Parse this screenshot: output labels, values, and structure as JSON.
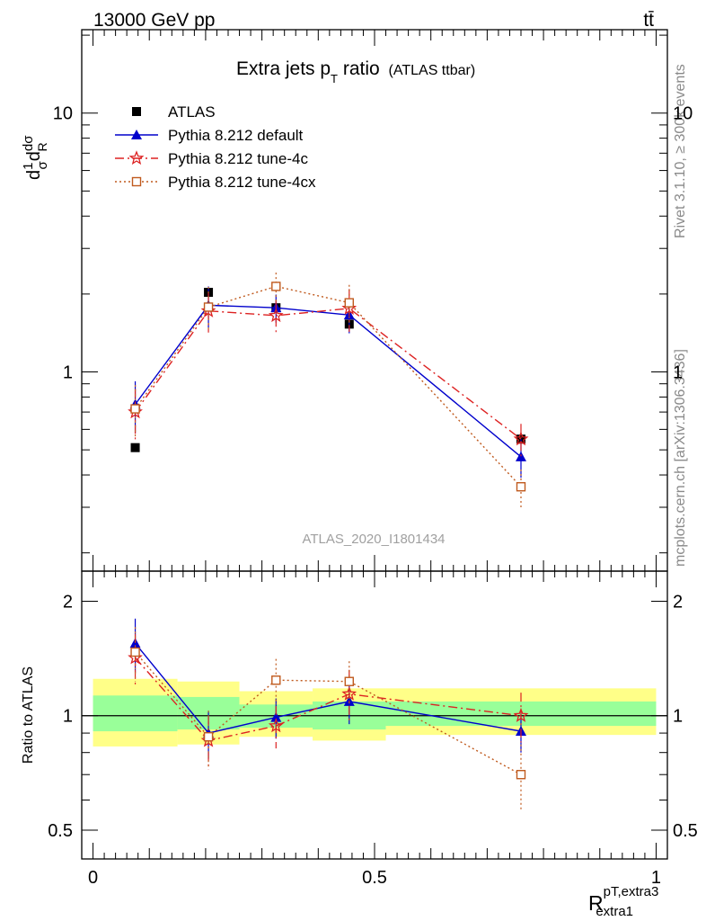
{
  "header": {
    "left": "13000 GeV pp",
    "right": "tt̄"
  },
  "side_labels": {
    "rivet": "Rivet 3.1.10, ≥ 300k events",
    "mcplots": "mcplots.cern.ch [arXiv:1306.3436]"
  },
  "colors": {
    "atlas": "#000000",
    "default": "#0000cc",
    "tune4c": "#dd2222",
    "tune4cx": "#c05a1e",
    "band_inner": "#99ff99",
    "band_outer": "#ffff88"
  },
  "chart_data": [
    {
      "type": "scatter",
      "panel": "main",
      "title_main": "Extra jets p",
      "title_sub": "T",
      "title_rest": " ratio",
      "title_note": "(ATLAS ttbar)",
      "ylabel": "1/σ dσ^fid/dR^pT,extra3_extra1",
      "watermark": "ATLAS_2020_I1801434",
      "yscale": "log",
      "ylim": [
        0.17,
        21
      ],
      "xlim": [
        -0.02,
        1.02
      ],
      "yticks": [
        {
          "value": 1,
          "label": "1"
        },
        {
          "value": 10,
          "label": "10"
        }
      ],
      "legend_position": "top-left",
      "series": [
        {
          "name": "ATLAS",
          "key": "atlas",
          "marker": "square",
          "x": [
            0.075,
            0.205,
            0.325,
            0.455,
            0.76
          ],
          "y": [
            0.51,
            2.03,
            1.77,
            1.53,
            0.55
          ]
        },
        {
          "name": "Pythia 8.212 default",
          "key": "default",
          "marker": "triangle",
          "line": "solid",
          "x": [
            0.075,
            0.205,
            0.325,
            0.455,
            0.76
          ],
          "y": [
            0.75,
            1.81,
            1.77,
            1.66,
            0.47
          ],
          "err": [
            0.17,
            0.33,
            0.22,
            0.25,
            0.08
          ]
        },
        {
          "name": "Pythia 8.212 tune-4c",
          "key": "tune4c",
          "marker": "star",
          "line": "dashdot",
          "x": [
            0.075,
            0.205,
            0.325,
            0.455,
            0.76
          ],
          "y": [
            0.7,
            1.72,
            1.65,
            1.76,
            0.55
          ],
          "err": [
            0.16,
            0.3,
            0.25,
            0.33,
            0.08
          ]
        },
        {
          "name": "Pythia 8.212 tune-4cx",
          "key": "tune4cx",
          "marker": "open-square",
          "line": "dotted",
          "x": [
            0.075,
            0.205,
            0.325,
            0.455,
            0.76
          ],
          "y": [
            0.72,
            1.78,
            2.14,
            1.85,
            0.36
          ],
          "err": [
            0.17,
            0.35,
            0.28,
            0.32,
            0.06
          ]
        }
      ]
    },
    {
      "type": "scatter",
      "panel": "ratio",
      "ylabel": "Ratio to ATLAS",
      "xlabel_main": "R",
      "xlabel_sup": "pT,extra3",
      "xlabel_sub": "extra1",
      "yscale": "log",
      "ylim": [
        0.42,
        2.4
      ],
      "xlim": [
        -0.02,
        1.02
      ],
      "yticks": [
        {
          "value": 0.5,
          "label": "0.5"
        },
        {
          "value": 1,
          "label": "1"
        },
        {
          "value": 2,
          "label": "2"
        }
      ],
      "xticks": [
        {
          "value": 0,
          "label": "0"
        },
        {
          "value": 0.5,
          "label": "0.5"
        },
        {
          "value": 1,
          "label": "1"
        }
      ],
      "bands": [
        {
          "x0": 0.0,
          "x1": 0.15,
          "inner": [
            0.91,
            1.13
          ],
          "outer": [
            0.83,
            1.25
          ]
        },
        {
          "x0": 0.15,
          "x1": 0.26,
          "inner": [
            0.92,
            1.12
          ],
          "outer": [
            0.84,
            1.23
          ]
        },
        {
          "x0": 0.26,
          "x1": 0.39,
          "inner": [
            0.93,
            1.07
          ],
          "outer": [
            0.88,
            1.16
          ]
        },
        {
          "x0": 0.39,
          "x1": 0.52,
          "inner": [
            0.92,
            1.09
          ],
          "outer": [
            0.86,
            1.18
          ]
        },
        {
          "x0": 0.52,
          "x1": 1.0,
          "inner": [
            0.94,
            1.09
          ],
          "outer": [
            0.89,
            1.18
          ]
        }
      ],
      "series": [
        {
          "name": "Pythia 8.212 default",
          "key": "default",
          "marker": "triangle",
          "line": "solid",
          "x": [
            0.075,
            0.205,
            0.325,
            0.455,
            0.76
          ],
          "y": [
            1.55,
            0.9,
            0.99,
            1.09,
            0.91
          ],
          "err": [
            0.25,
            0.13,
            0.12,
            0.14,
            0.11
          ]
        },
        {
          "name": "Pythia 8.212 tune-4c",
          "key": "tune4c",
          "marker": "star",
          "line": "dashdot",
          "x": [
            0.075,
            0.205,
            0.325,
            0.455,
            0.76
          ],
          "y": [
            1.42,
            0.86,
            0.94,
            1.14,
            1.0
          ],
          "err": [
            0.22,
            0.14,
            0.12,
            0.18,
            0.15
          ]
        },
        {
          "name": "Pythia 8.212 tune-4cx",
          "key": "tune4cx",
          "marker": "open-square",
          "line": "dotted",
          "x": [
            0.075,
            0.205,
            0.325,
            0.455,
            0.76
          ],
          "y": [
            1.47,
            0.88,
            1.24,
            1.23,
            0.7
          ],
          "err": [
            0.24,
            0.15,
            0.17,
            0.16,
            0.14
          ]
        }
      ]
    }
  ]
}
